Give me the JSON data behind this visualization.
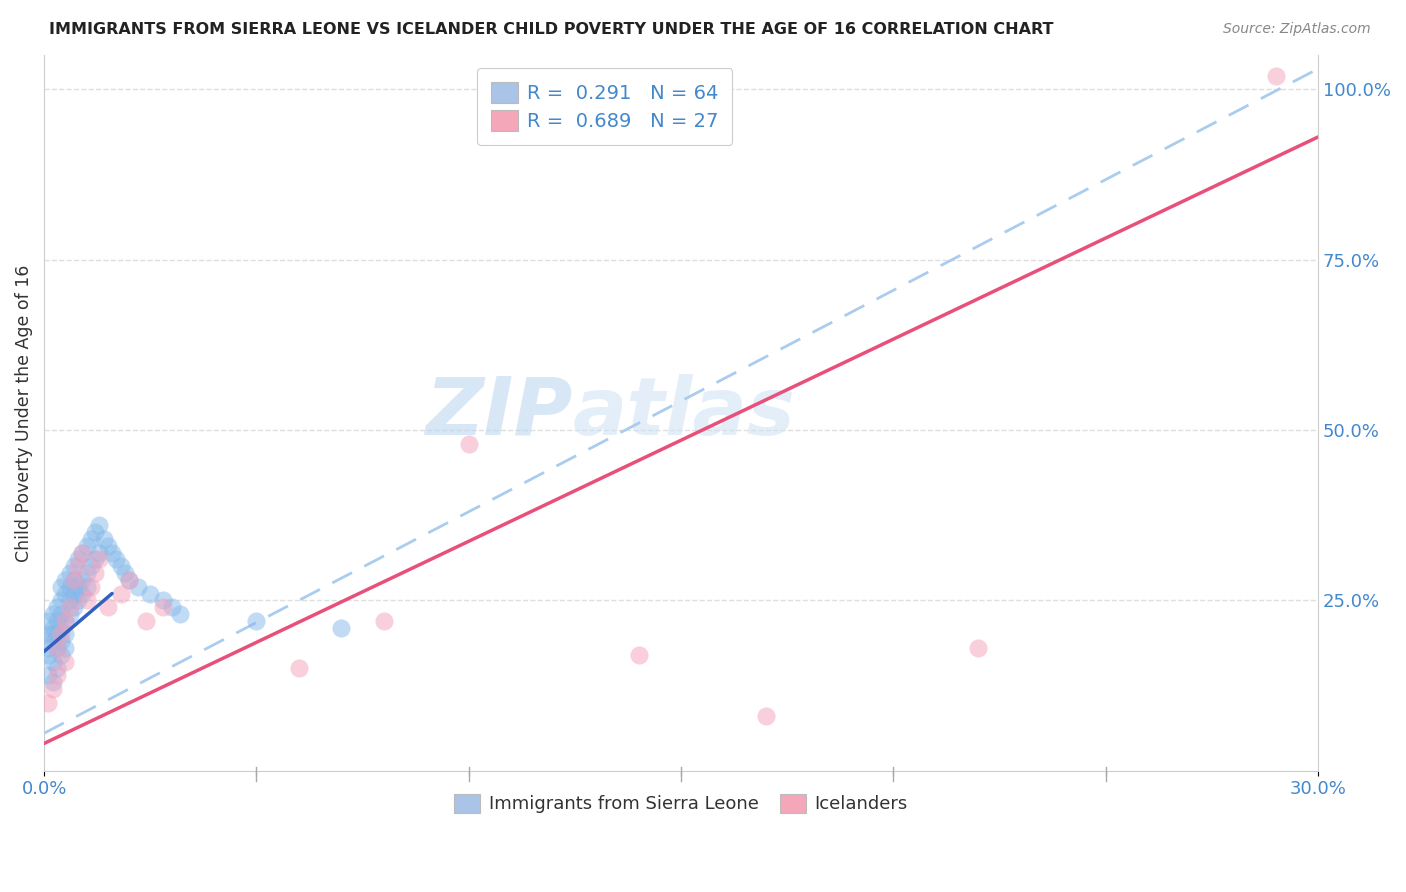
{
  "title": "IMMIGRANTS FROM SIERRA LEONE VS ICELANDER CHILD POVERTY UNDER THE AGE OF 16 CORRELATION CHART",
  "source": "Source: ZipAtlas.com",
  "ylabel": "Child Poverty Under the Age of 16",
  "xmin": 0.0,
  "xmax": 0.3,
  "ymin": 0.0,
  "ymax": 1.05,
  "xticks": [
    0.0,
    0.05,
    0.1,
    0.15,
    0.2,
    0.25,
    0.3
  ],
  "ytick_positions": [
    0.25,
    0.5,
    0.75,
    1.0
  ],
  "ytick_labels": [
    "25.0%",
    "50.0%",
    "75.0%",
    "100.0%"
  ],
  "legend_color1": "#aac4e8",
  "legend_color2": "#f4a7b9",
  "scatter_color1": "#85b8ea",
  "scatter_color2": "#f5a0bb",
  "line_color1": "#3060c0",
  "line_color2": "#e8507a",
  "dashed_color": "#aaccee",
  "watermark_zip": "ZIP",
  "watermark_atlas": "atlas",
  "background_color": "#ffffff",
  "grid_color": "#d8d8d8",
  "sl_x": [
    0.001,
    0.001,
    0.001,
    0.001,
    0.001,
    0.002,
    0.002,
    0.002,
    0.002,
    0.002,
    0.002,
    0.003,
    0.003,
    0.003,
    0.003,
    0.003,
    0.004,
    0.004,
    0.004,
    0.004,
    0.004,
    0.004,
    0.005,
    0.005,
    0.005,
    0.005,
    0.005,
    0.006,
    0.006,
    0.006,
    0.006,
    0.007,
    0.007,
    0.007,
    0.007,
    0.008,
    0.008,
    0.008,
    0.009,
    0.009,
    0.009,
    0.01,
    0.01,
    0.01,
    0.011,
    0.011,
    0.012,
    0.012,
    0.013,
    0.013,
    0.014,
    0.015,
    0.016,
    0.017,
    0.018,
    0.019,
    0.02,
    0.022,
    0.025,
    0.028,
    0.03,
    0.032,
    0.05,
    0.07
  ],
  "sl_y": [
    0.18,
    0.2,
    0.22,
    0.17,
    0.14,
    0.21,
    0.19,
    0.23,
    0.16,
    0.2,
    0.13,
    0.22,
    0.18,
    0.24,
    0.2,
    0.15,
    0.25,
    0.21,
    0.27,
    0.19,
    0.23,
    0.17,
    0.26,
    0.22,
    0.28,
    0.2,
    0.18,
    0.29,
    0.25,
    0.27,
    0.23,
    0.3,
    0.26,
    0.28,
    0.24,
    0.31,
    0.27,
    0.25,
    0.32,
    0.28,
    0.26,
    0.33,
    0.29,
    0.27,
    0.34,
    0.3,
    0.35,
    0.31,
    0.36,
    0.32,
    0.34,
    0.33,
    0.32,
    0.31,
    0.3,
    0.29,
    0.28,
    0.27,
    0.26,
    0.25,
    0.24,
    0.23,
    0.22,
    0.21
  ],
  "ic_x": [
    0.001,
    0.002,
    0.003,
    0.003,
    0.004,
    0.005,
    0.005,
    0.006,
    0.007,
    0.008,
    0.009,
    0.01,
    0.011,
    0.012,
    0.013,
    0.015,
    0.018,
    0.02,
    0.024,
    0.028,
    0.06,
    0.08,
    0.1,
    0.14,
    0.17,
    0.22,
    0.29
  ],
  "ic_y": [
    0.1,
    0.12,
    0.18,
    0.14,
    0.2,
    0.22,
    0.16,
    0.24,
    0.28,
    0.3,
    0.32,
    0.25,
    0.27,
    0.29,
    0.31,
    0.24,
    0.26,
    0.28,
    0.22,
    0.24,
    0.15,
    0.22,
    0.48,
    0.17,
    0.08,
    0.18,
    1.02
  ],
  "blue_line_x0": 0.0,
  "blue_line_y0": 0.175,
  "blue_line_x1": 0.016,
  "blue_line_y1": 0.26,
  "pink_line_x0": 0.0,
  "pink_line_y0": 0.04,
  "pink_line_x1": 0.3,
  "pink_line_y1": 0.93,
  "dashed_line_x0": 0.0,
  "dashed_line_y0": 0.055,
  "dashed_line_x1": 0.3,
  "dashed_line_y1": 1.03
}
